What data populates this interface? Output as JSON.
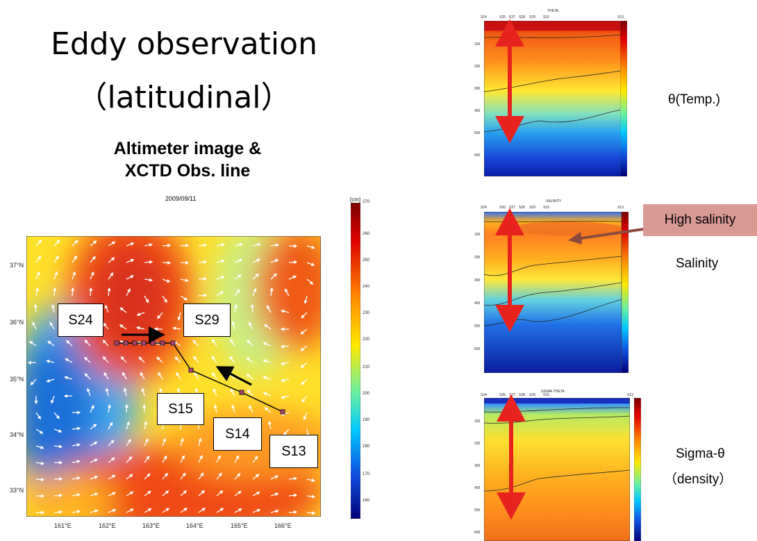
{
  "title": {
    "line1": "Eddy observation",
    "line2": "（latitudinal）"
  },
  "subtitle": {
    "line1": "Altimeter image &",
    "line2": "XCTD Obs. line"
  },
  "map": {
    "date": "2009/09/11",
    "unit": "[cm]",
    "colorbar_ticks": [
      "270",
      "260",
      "250",
      "240",
      "230",
      "220",
      "210",
      "200",
      "190",
      "180",
      "170",
      "160"
    ],
    "lat_ticks": [
      "37°N",
      "36°N",
      "35°N",
      "34°N",
      "33°N"
    ],
    "lon_ticks": [
      "161°E",
      "162°E",
      "163°E",
      "164°E",
      "165°E",
      "166°E"
    ],
    "stations": [
      "S24",
      "S29",
      "S15",
      "S14",
      "S13"
    ]
  },
  "sections": {
    "theta": {
      "title": "THETA",
      "stations": [
        "S24",
        "S26",
        "S27",
        "S28",
        "S29",
        "S15",
        "S13"
      ],
      "depths": [
        "100",
        "200",
        "300",
        "400",
        "500",
        "600"
      ]
    },
    "salinity": {
      "title": "SALINITY",
      "stations": [
        "S24",
        "S26",
        "S27",
        "S28",
        "S29",
        "S15",
        "S13"
      ],
      "depths": [
        "100",
        "200",
        "300",
        "400",
        "500",
        "600"
      ]
    },
    "sigma": {
      "title": "SIGMA-THETA",
      "stations": [
        "S24",
        "S26",
        "S27",
        "S28",
        "S29",
        "S15",
        "S13"
      ],
      "depths": [
        "100",
        "200",
        "300",
        "400",
        "500",
        "600"
      ]
    }
  },
  "labels": {
    "theta": "θ(Temp.)",
    "high_salinity": "High salinity",
    "salinity": "Salinity",
    "sigma_line1": "Sigma-θ",
    "sigma_line2": "（density）"
  },
  "colors": {
    "red_arrow": "#e8231f",
    "brown_arrow": "#8b4a3c",
    "highlight": "#d99a94"
  }
}
